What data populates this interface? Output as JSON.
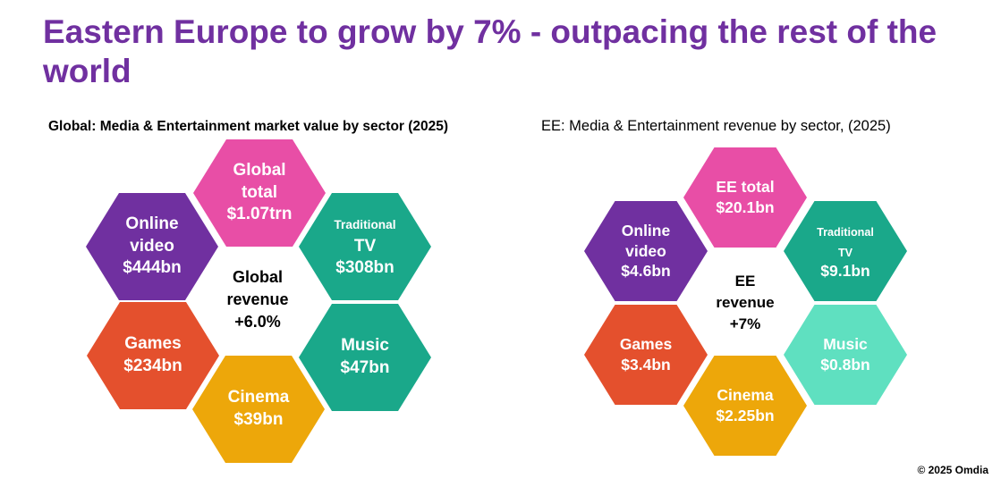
{
  "title": "Eastern Europe to grow by 7% - outpacing the rest of the world",
  "global": {
    "subtitle": "Global: Media & Entertainment market value by sector (2025)",
    "center": {
      "line1": "Global",
      "line2": "revenue",
      "line3": "+6.0%"
    },
    "total": {
      "line1": "Global",
      "line2": "total",
      "value": "$1.07trn",
      "color": "#e84ea6"
    },
    "online_video": {
      "line1": "Online",
      "line2": "video",
      "value": "$444bn",
      "color": "#7030a0"
    },
    "traditional_tv": {
      "line1": "Traditional",
      "line2": "TV",
      "value": "$308bn",
      "color": "#1aa88a"
    },
    "games": {
      "line1": "Games",
      "value": "$234bn",
      "color": "#e4502d"
    },
    "music": {
      "line1": "Music",
      "value": "$47bn",
      "color": "#1aa88a"
    },
    "cinema": {
      "line1": "Cinema",
      "value": "$39bn",
      "color": "#eda70a"
    }
  },
  "ee": {
    "subtitle": "EE: Media & Entertainment revenue by sector, (2025)",
    "center": {
      "line1": "EE",
      "line2": "revenue",
      "line3": "+7%"
    },
    "total": {
      "line1": "EE total",
      "value": "$20.1bn",
      "color": "#e84ea6"
    },
    "online_video": {
      "line1": "Online",
      "line2": "video",
      "value": "$4.6bn",
      "color": "#7030a0"
    },
    "traditional_tv": {
      "line1": "Traditional",
      "line2": "TV",
      "value": "$9.1bn",
      "color": "#1aa88a"
    },
    "games": {
      "line1": "Games",
      "value": "$3.4bn",
      "color": "#e4502d"
    },
    "music": {
      "line1": "Music",
      "value": "$0.8bn",
      "color": "#5fe0c0"
    },
    "cinema": {
      "line1": "Cinema",
      "value": "$2.25bn",
      "color": "#eda70a"
    }
  },
  "copyright": "© 2025 Omdia"
}
